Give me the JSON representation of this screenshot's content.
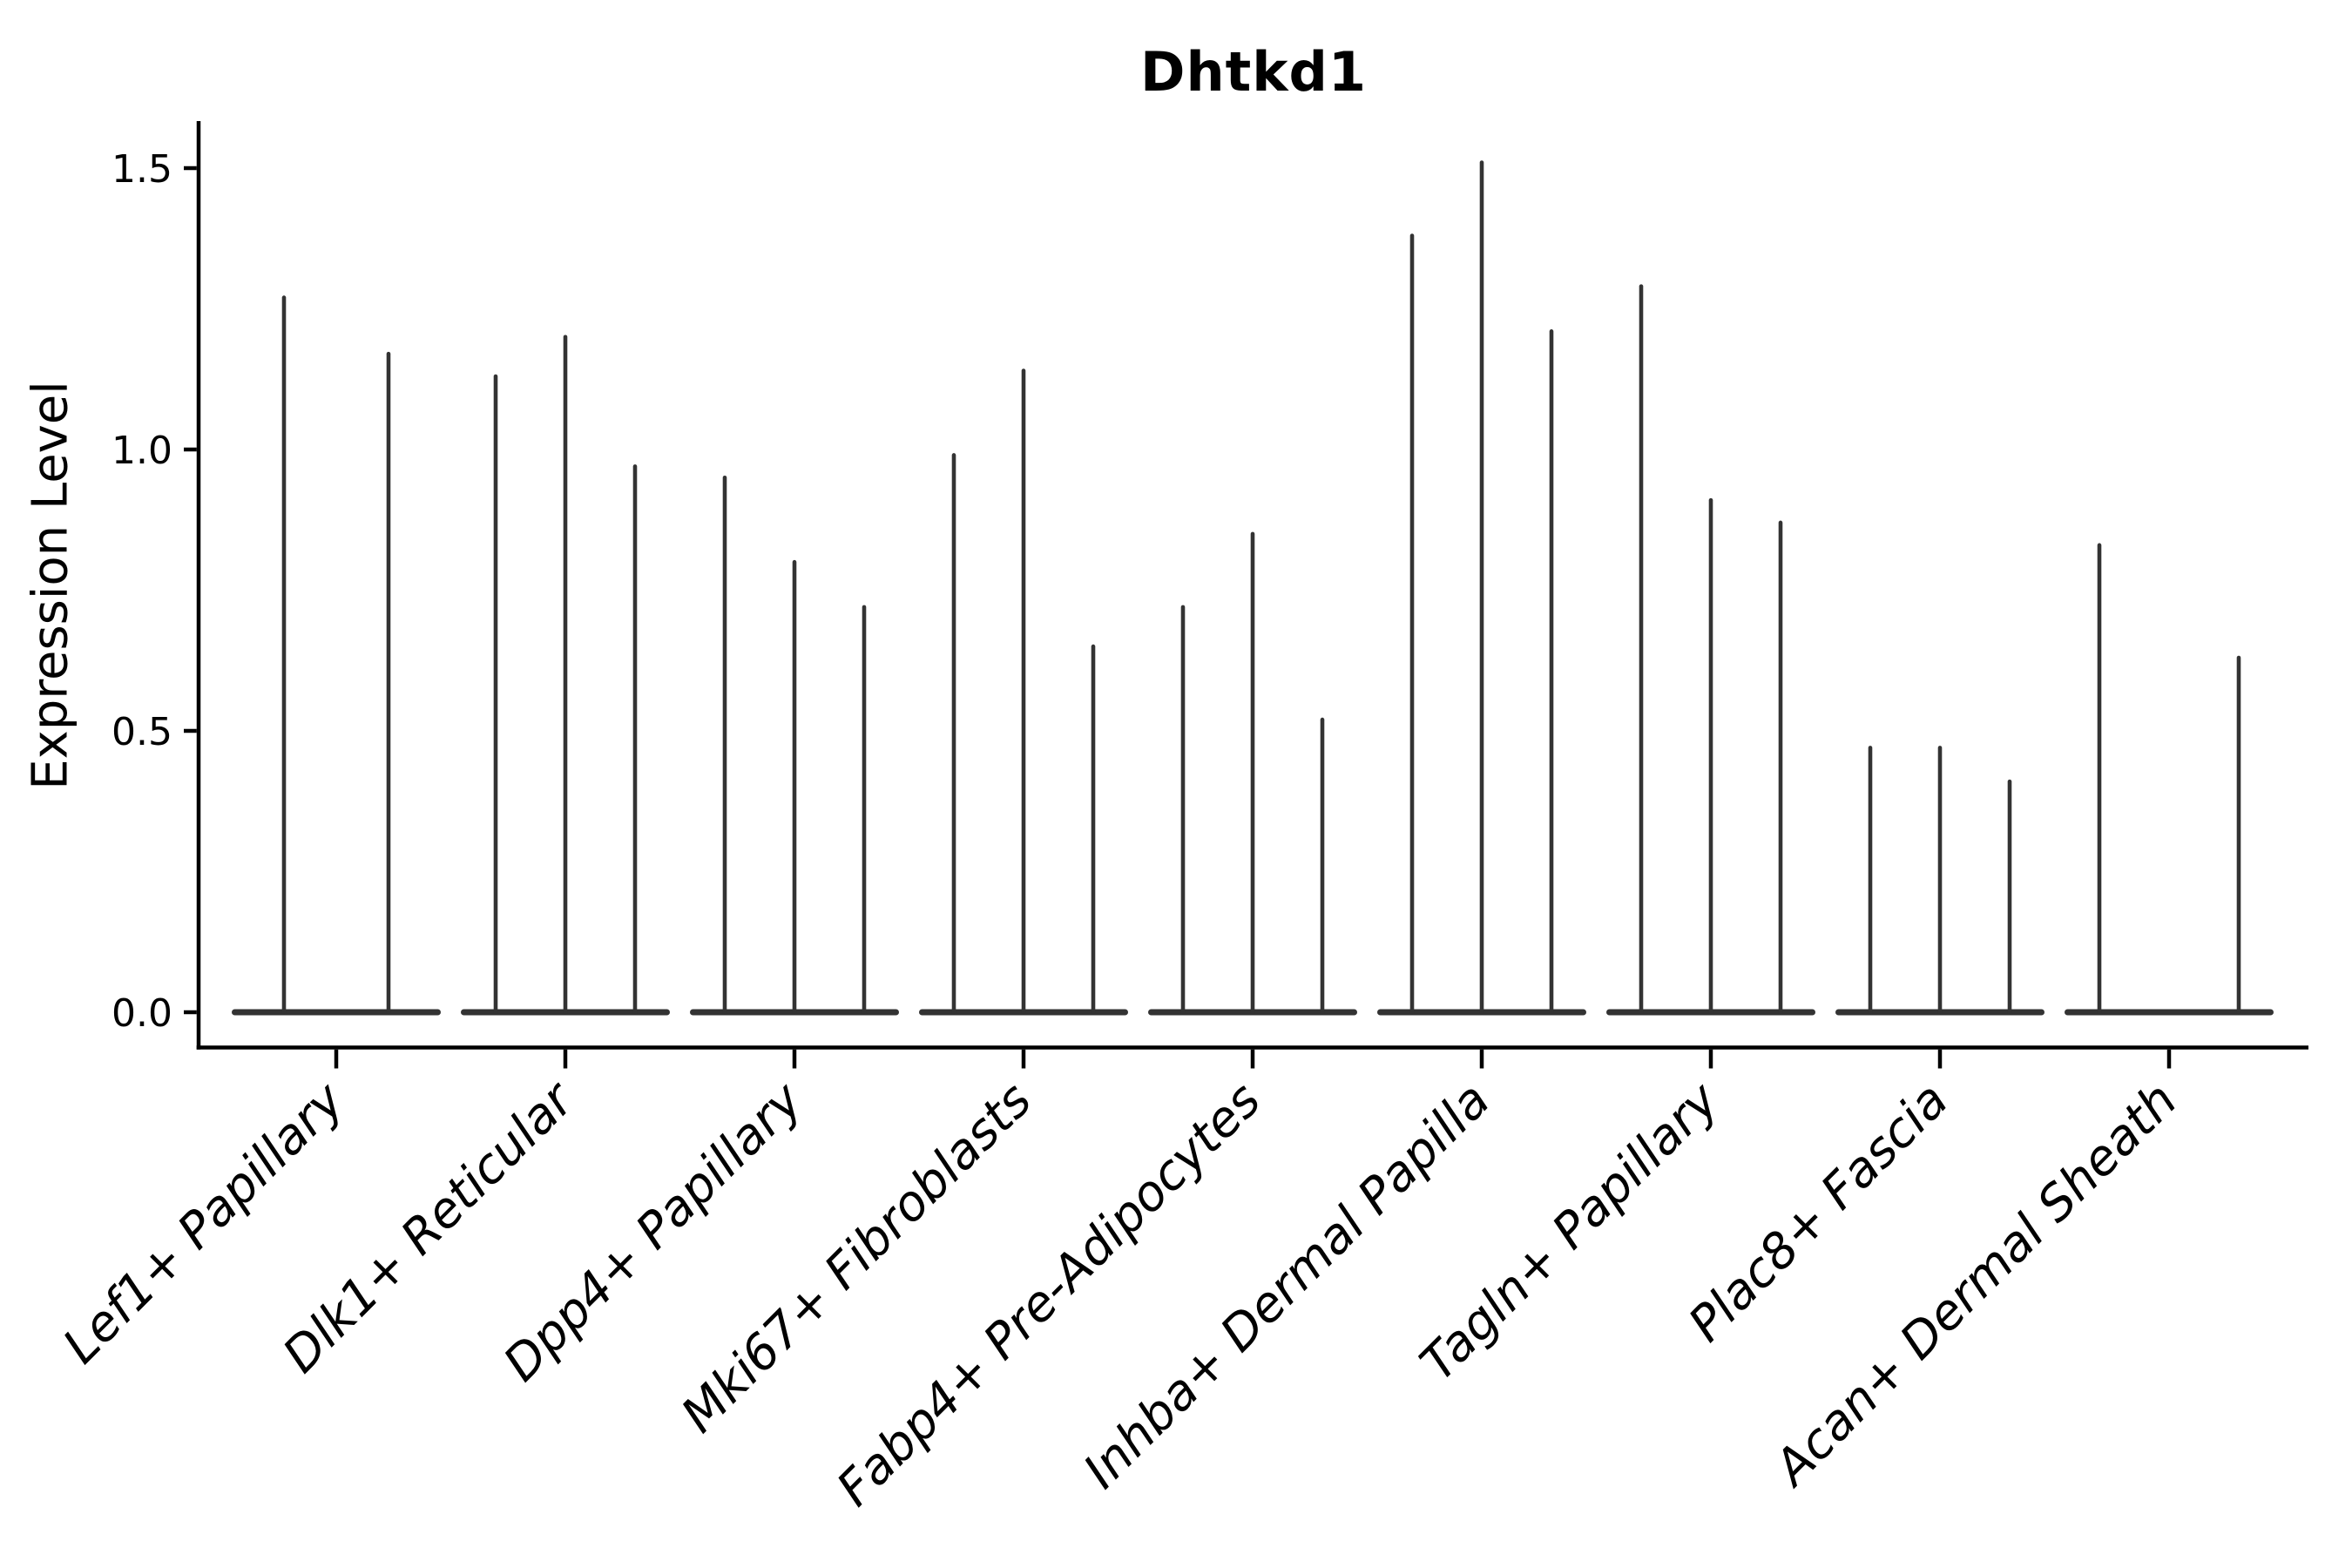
{
  "figure": {
    "title": "Dhtkd1",
    "ylabel": "Expression Level"
  },
  "chart_data": {
    "type": "violin",
    "title": "Dhtkd1",
    "xlabel": "",
    "ylabel": "Expression Level",
    "ylim": [
      0,
      1.58
    ],
    "yticks": [
      0.0,
      0.5,
      1.0,
      1.5
    ],
    "ytick_labels": [
      "0.0",
      "0.5",
      "1.0",
      "1.5"
    ],
    "grid": false,
    "legend_position": "none",
    "x_tick_label_rotation_deg": 45,
    "x_tick_label_style": "italic",
    "violin_color": "#333333",
    "axis_color": "#000000",
    "text_color": "#000000",
    "categories": [
      "Lef1+ Papillary",
      "Dlk1+ Reticular",
      "Dpp4+ Papillary",
      "Mki67+ Fibroblasts",
      "Fabp4+ Pre-Adipocytes",
      "Inhba+ Dermal Papilla",
      "Tagln+ Papillary",
      "Plac8+ Fascia",
      "Acan+ Dermal Sheath"
    ],
    "groups": [
      {
        "category": "Lef1+ Papillary",
        "violin_max": [
          1.27,
          1.17
        ]
      },
      {
        "category": "Dlk1+ Reticular",
        "violin_max": [
          1.13,
          1.2,
          0.97
        ]
      },
      {
        "category": "Dpp4+ Papillary",
        "violin_max": [
          0.95,
          0.8,
          0.72
        ]
      },
      {
        "category": "Mki67+ Fibroblasts",
        "violin_max": [
          0.99,
          1.14,
          0.65
        ]
      },
      {
        "category": "Fabp4+ Pre-Adipocytes",
        "violin_max": [
          0.72,
          0.85,
          0.52
        ]
      },
      {
        "category": "Inhba+ Dermal Papilla",
        "violin_max": [
          1.38,
          1.51,
          1.21
        ]
      },
      {
        "category": "Tagln+ Papillary",
        "violin_max": [
          1.29,
          0.91,
          0.87
        ]
      },
      {
        "category": "Plac8+ Fascia",
        "violin_max": [
          0.47,
          0.47,
          0.41
        ]
      },
      {
        "category": "Acan+ Dermal Sheath",
        "violin_max": [
          0.83,
          0.0,
          0.63
        ]
      }
    ],
    "description": "Each violin is collapsed flat at expression 0 with a thin vertical spike rising to its maximum value."
  }
}
